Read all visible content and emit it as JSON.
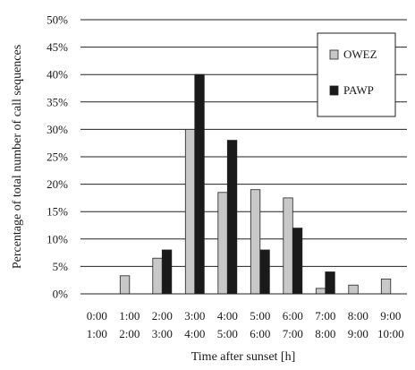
{
  "chart_data": {
    "type": "bar",
    "categories": [
      [
        "0:00",
        "1:00"
      ],
      [
        "1:00",
        "2:00"
      ],
      [
        "2:00",
        "3:00"
      ],
      [
        "3:00",
        "4:00"
      ],
      [
        "4:00",
        "5:00"
      ],
      [
        "5:00",
        "6:00"
      ],
      [
        "6:00",
        "7:00"
      ],
      [
        "7:00",
        "8:00"
      ],
      [
        "8:00",
        "9:00"
      ],
      [
        "9:00",
        "10:00"
      ]
    ],
    "series": [
      {
        "name": "OWEZ",
        "color": "#c8c8c8",
        "values": [
          0,
          3.3,
          6.5,
          30,
          18.5,
          19,
          17.5,
          1,
          1.6,
          2.7
        ]
      },
      {
        "name": "PAWP",
        "color": "#1a1a1a",
        "values": [
          0,
          0,
          8,
          40,
          28,
          8,
          12,
          4,
          0,
          0
        ]
      }
    ],
    "xlabel": "Time after sunset [h]",
    "ylabel": "Percentage of total number of call sequences",
    "ylim": [
      0,
      50
    ],
    "yticks": [
      "0%",
      "5%",
      "10%",
      "15%",
      "20%",
      "25%",
      "30%",
      "35%",
      "40%",
      "45%",
      "50%"
    ],
    "grid": "horizontal",
    "legend_position": "top-right"
  }
}
